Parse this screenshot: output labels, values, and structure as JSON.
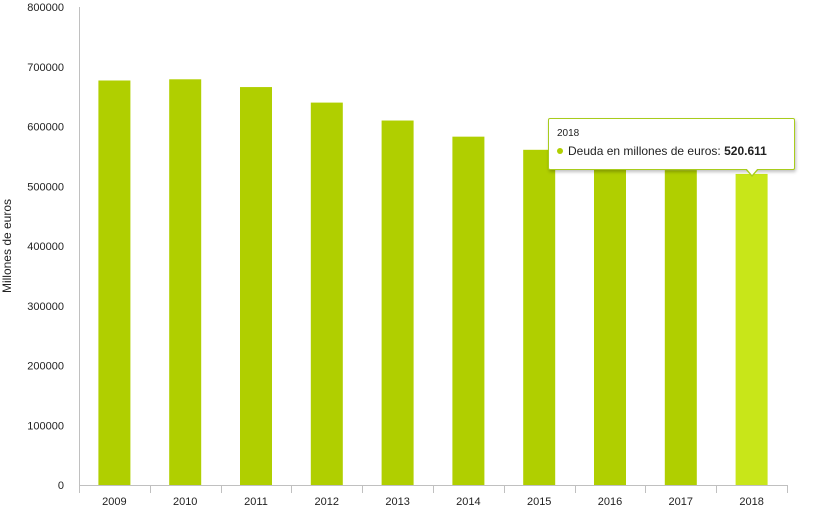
{
  "chart_data": {
    "type": "bar",
    "categories": [
      "2009",
      "2010",
      "2011",
      "2012",
      "2013",
      "2014",
      "2015",
      "2016",
      "2017",
      "2018"
    ],
    "series": [
      {
        "name": "Deuda en millones de euros",
        "values": [
          677000,
          679000,
          666000,
          640000,
          610000,
          583000,
          561000,
          542000,
          527000,
          520611
        ]
      }
    ],
    "ylabel": "Millones de euros",
    "yticks": [
      "0",
      "100000",
      "200000",
      "300000",
      "400000",
      "500000",
      "600000",
      "700000",
      "800000"
    ],
    "ylim": [
      0,
      800000
    ],
    "grid": false,
    "bar_color": "#b0cf00",
    "highlight_color": "#c8e619",
    "highlight_index": 9
  },
  "tooltip": {
    "title": "2018",
    "series_label": "Deuda en millones de euros: ",
    "value": "520.611"
  }
}
